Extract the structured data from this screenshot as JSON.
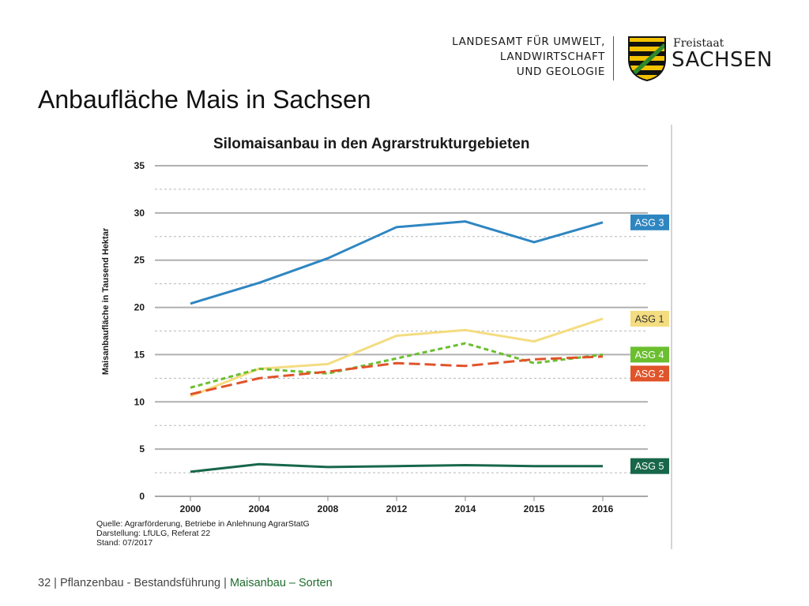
{
  "header": {
    "org_lines": [
      "LANDESAMT FÜR UMWELT,",
      "LANDWIRTSCHAFT",
      "UND GEOLOGIE"
    ],
    "brand_top": "Freistaat",
    "brand_main": "SACHSEN"
  },
  "page_title": "Anbaufläche Mais in Sachsen",
  "footer": {
    "page_number": "32",
    "section": "Pflanzenbau - Bestandsführung",
    "active_topic": "Maisanbau – Sorten",
    "separator": " | "
  },
  "chart_data": {
    "type": "line",
    "title": "Silomaisanbau in den Agrarstrukturgebieten",
    "ylabel": "Maisanbaufläche in Tausend Hektar",
    "xlabel": "",
    "categories": [
      "2000",
      "2004",
      "2008",
      "2012",
      "2014",
      "2015",
      "2016"
    ],
    "ylim": [
      0,
      35
    ],
    "yticks": [
      0,
      5,
      10,
      15,
      20,
      25,
      30,
      35
    ],
    "grid": true,
    "legend_placement": "right",
    "series": [
      {
        "name": "ASG 3",
        "color": "#2e86c1",
        "dash": "solid",
        "values": [
          20.4,
          22.6,
          25.2,
          28.5,
          29.1,
          26.9,
          29.0
        ]
      },
      {
        "name": "ASG 1",
        "color": "#f4dc80",
        "dash": "solid",
        "values": [
          10.6,
          13.5,
          14.0,
          17.0,
          17.6,
          16.4,
          18.8
        ]
      },
      {
        "name": "ASG 4",
        "color": "#6abf2f",
        "dash": "short",
        "values": [
          11.5,
          13.5,
          13.0,
          14.6,
          16.2,
          14.1,
          15.0
        ]
      },
      {
        "name": "ASG 2",
        "color": "#e0542a",
        "dash": "long",
        "values": [
          10.8,
          12.5,
          13.2,
          14.1,
          13.8,
          14.5,
          14.8
        ]
      },
      {
        "name": "ASG 5",
        "color": "#18674a",
        "dash": "solid",
        "values": [
          2.6,
          3.4,
          3.1,
          3.2,
          3.3,
          3.2,
          3.2
        ]
      }
    ],
    "source_lines": [
      "Quelle: Agrarförderung, Betriebe in Anlehnung AgrarStatG",
      "Darstellung: LfULG, Referat 22",
      "Stand: 07/2017"
    ]
  }
}
